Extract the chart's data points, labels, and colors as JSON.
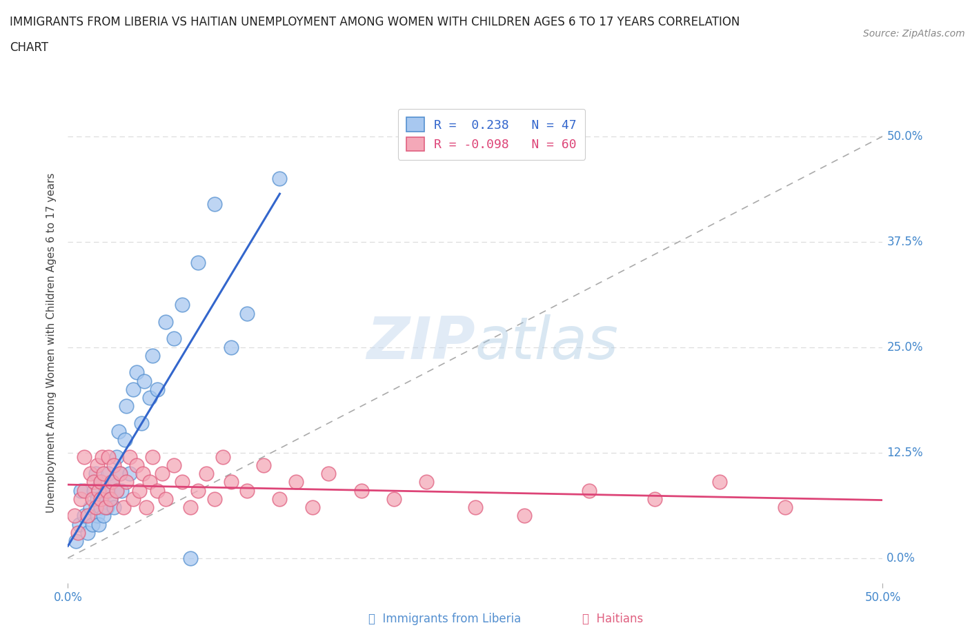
{
  "title_line1": "IMMIGRANTS FROM LIBERIA VS HAITIAN UNEMPLOYMENT AMONG WOMEN WITH CHILDREN AGES 6 TO 17 YEARS CORRELATION",
  "title_line2": "CHART",
  "source": "Source: ZipAtlas.com",
  "ylabel": "Unemployment Among Women with Children Ages 6 to 17 years",
  "xlim": [
    0.0,
    0.5
  ],
  "ylim": [
    -0.03,
    0.54
  ],
  "ytick_vals": [
    0.0,
    0.125,
    0.25,
    0.375,
    0.5
  ],
  "ytick_labels": [
    "0.0%",
    "12.5%",
    "25.0%",
    "37.5%",
    "50.0%"
  ],
  "xtick_vals": [
    0.0,
    0.5
  ],
  "xtick_labels": [
    "0.0%",
    "50.0%"
  ],
  "legend_liberia_r": "0.238",
  "legend_liberia_n": "47",
  "legend_haitian_r": "-0.098",
  "legend_haitian_n": "60",
  "color_liberia_fill": "#a8c8f0",
  "color_liberia_edge": "#5590d0",
  "color_haitian_fill": "#f4a8b8",
  "color_haitian_edge": "#e06080",
  "color_line_liberia": "#3366cc",
  "color_line_haitian": "#dd4477",
  "color_diag": "#aaaaaa",
  "color_tick": "#4488cc",
  "color_title": "#222222",
  "color_source": "#888888",
  "color_grid": "#dddddd",
  "color_ylabel": "#444444",
  "watermark_color": "#c5d8ee",
  "watermark_alpha": 0.5,
  "background_color": "#ffffff",
  "liberia_x": [
    0.005,
    0.007,
    0.008,
    0.01,
    0.012,
    0.014,
    0.015,
    0.016,
    0.017,
    0.018,
    0.018,
    0.019,
    0.02,
    0.02,
    0.021,
    0.022,
    0.023,
    0.024,
    0.025,
    0.025,
    0.026,
    0.027,
    0.028,
    0.03,
    0.03,
    0.031,
    0.032,
    0.033,
    0.035,
    0.036,
    0.038,
    0.04,
    0.042,
    0.045,
    0.047,
    0.05,
    0.052,
    0.055,
    0.06,
    0.065,
    0.07,
    0.075,
    0.08,
    0.09,
    0.1,
    0.11,
    0.13
  ],
  "liberia_y": [
    0.02,
    0.04,
    0.08,
    0.05,
    0.03,
    0.06,
    0.04,
    0.08,
    0.1,
    0.05,
    0.07,
    0.04,
    0.06,
    0.09,
    0.07,
    0.05,
    0.08,
    0.06,
    0.08,
    0.1,
    0.07,
    0.09,
    0.06,
    0.08,
    0.12,
    0.15,
    0.1,
    0.08,
    0.14,
    0.18,
    0.1,
    0.2,
    0.22,
    0.16,
    0.21,
    0.19,
    0.24,
    0.2,
    0.28,
    0.26,
    0.3,
    0.0,
    0.35,
    0.42,
    0.25,
    0.29,
    0.45
  ],
  "haitian_x": [
    0.004,
    0.006,
    0.008,
    0.01,
    0.01,
    0.012,
    0.014,
    0.015,
    0.016,
    0.017,
    0.018,
    0.019,
    0.02,
    0.02,
    0.021,
    0.022,
    0.023,
    0.024,
    0.025,
    0.026,
    0.027,
    0.028,
    0.03,
    0.032,
    0.034,
    0.036,
    0.038,
    0.04,
    0.042,
    0.044,
    0.046,
    0.048,
    0.05,
    0.052,
    0.055,
    0.058,
    0.06,
    0.065,
    0.07,
    0.075,
    0.08,
    0.085,
    0.09,
    0.095,
    0.1,
    0.11,
    0.12,
    0.13,
    0.14,
    0.15,
    0.16,
    0.18,
    0.2,
    0.22,
    0.25,
    0.28,
    0.32,
    0.36,
    0.4,
    0.44
  ],
  "haitian_y": [
    0.05,
    0.03,
    0.07,
    0.08,
    0.12,
    0.05,
    0.1,
    0.07,
    0.09,
    0.06,
    0.11,
    0.08,
    0.07,
    0.09,
    0.12,
    0.1,
    0.06,
    0.08,
    0.12,
    0.07,
    0.09,
    0.11,
    0.08,
    0.1,
    0.06,
    0.09,
    0.12,
    0.07,
    0.11,
    0.08,
    0.1,
    0.06,
    0.09,
    0.12,
    0.08,
    0.1,
    0.07,
    0.11,
    0.09,
    0.06,
    0.08,
    0.1,
    0.07,
    0.12,
    0.09,
    0.08,
    0.11,
    0.07,
    0.09,
    0.06,
    0.1,
    0.08,
    0.07,
    0.09,
    0.06,
    0.05,
    0.08,
    0.07,
    0.09,
    0.06
  ],
  "legend_label_liberia": "Immigrants from Liberia",
  "legend_label_haitian": "Haitians"
}
